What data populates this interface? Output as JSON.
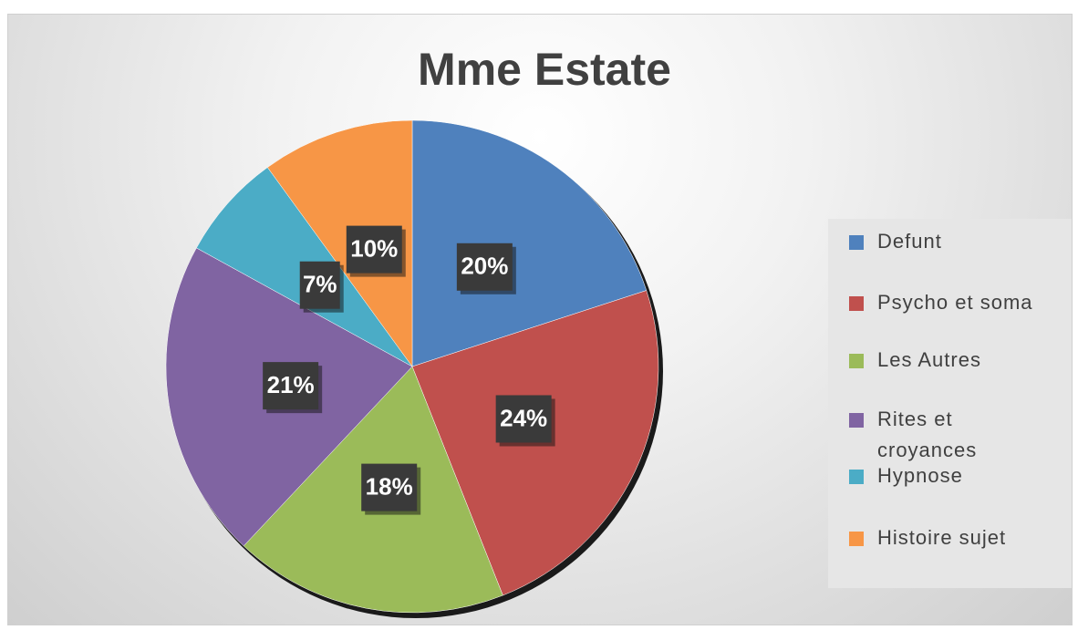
{
  "chart_data": {
    "type": "pie",
    "title": "Mme Estate",
    "categories": [
      "Defunt",
      "Psycho et soma",
      "Les Autres",
      "Rites et croyances",
      "Hypnose",
      "Histoire sujet"
    ],
    "values": [
      20,
      24,
      18,
      21,
      7,
      10
    ],
    "value_labels": [
      "20%",
      "24%",
      "18%",
      "21%",
      "7%",
      "10%"
    ],
    "colors": [
      "#4f81bd",
      "#c0504d",
      "#9bbb59",
      "#8064a2",
      "#4bacc6",
      "#f79646"
    ],
    "legend": "right"
  }
}
